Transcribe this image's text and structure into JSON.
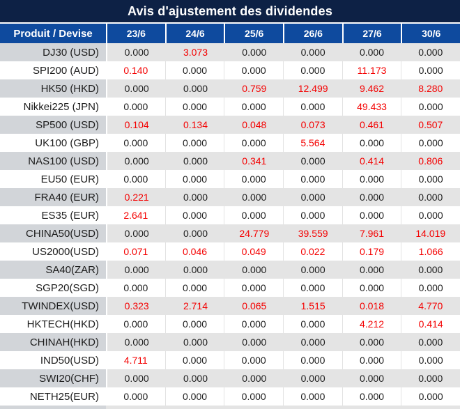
{
  "title": "Avis d'ajustement des dividendes",
  "header": {
    "product_label": "Produit / Devise",
    "dates": [
      "23/6",
      "24/6",
      "25/6",
      "26/6",
      "27/6",
      "30/6"
    ]
  },
  "rows": [
    {
      "product": "DJ30 (USD)",
      "values": [
        "0.000",
        "3.073",
        "0.000",
        "0.000",
        "0.000",
        "0.000"
      ],
      "red": [
        false,
        true,
        false,
        false,
        false,
        false
      ]
    },
    {
      "product": "SPI200 (AUD)",
      "values": [
        "0.140",
        "0.000",
        "0.000",
        "0.000",
        "11.173",
        "0.000"
      ],
      "red": [
        true,
        false,
        false,
        false,
        true,
        false
      ]
    },
    {
      "product": "HK50 (HKD)",
      "values": [
        "0.000",
        "0.000",
        "0.759",
        "12.499",
        "9.462",
        "8.280"
      ],
      "red": [
        false,
        false,
        true,
        true,
        true,
        true
      ]
    },
    {
      "product": "Nikkei225 (JPN)",
      "values": [
        "0.000",
        "0.000",
        "0.000",
        "0.000",
        "49.433",
        "0.000"
      ],
      "red": [
        false,
        false,
        false,
        false,
        true,
        false
      ]
    },
    {
      "product": "SP500 (USD)",
      "values": [
        "0.104",
        "0.134",
        "0.048",
        "0.073",
        "0.461",
        "0.507"
      ],
      "red": [
        true,
        true,
        true,
        true,
        true,
        true
      ]
    },
    {
      "product": "UK100 (GBP)",
      "values": [
        "0.000",
        "0.000",
        "0.000",
        "5.564",
        "0.000",
        "0.000"
      ],
      "red": [
        false,
        false,
        false,
        true,
        false,
        false
      ]
    },
    {
      "product": "NAS100 (USD)",
      "values": [
        "0.000",
        "0.000",
        "0.341",
        "0.000",
        "0.414",
        "0.806"
      ],
      "red": [
        false,
        false,
        true,
        false,
        true,
        true
      ]
    },
    {
      "product": "EU50 (EUR)",
      "values": [
        "0.000",
        "0.000",
        "0.000",
        "0.000",
        "0.000",
        "0.000"
      ],
      "red": [
        false,
        false,
        false,
        false,
        false,
        false
      ]
    },
    {
      "product": "FRA40 (EUR)",
      "values": [
        "0.221",
        "0.000",
        "0.000",
        "0.000",
        "0.000",
        "0.000"
      ],
      "red": [
        true,
        false,
        false,
        false,
        false,
        false
      ]
    },
    {
      "product": "ES35 (EUR)",
      "values": [
        "2.641",
        "0.000",
        "0.000",
        "0.000",
        "0.000",
        "0.000"
      ],
      "red": [
        true,
        false,
        false,
        false,
        false,
        false
      ]
    },
    {
      "product": "CHINA50(USD)",
      "values": [
        "0.000",
        "0.000",
        "24.779",
        "39.559",
        "7.961",
        "14.019"
      ],
      "red": [
        false,
        false,
        true,
        true,
        true,
        true
      ]
    },
    {
      "product": "US2000(USD)",
      "values": [
        "0.071",
        "0.046",
        "0.049",
        "0.022",
        "0.179",
        "1.066"
      ],
      "red": [
        true,
        true,
        true,
        true,
        true,
        true
      ]
    },
    {
      "product": "SA40(ZAR)",
      "values": [
        "0.000",
        "0.000",
        "0.000",
        "0.000",
        "0.000",
        "0.000"
      ],
      "red": [
        false,
        false,
        false,
        false,
        false,
        false
      ]
    },
    {
      "product": "SGP20(SGD)",
      "values": [
        "0.000",
        "0.000",
        "0.000",
        "0.000",
        "0.000",
        "0.000"
      ],
      "red": [
        false,
        false,
        false,
        false,
        false,
        false
      ]
    },
    {
      "product": "TWINDEX(USD)",
      "values": [
        "0.323",
        "2.714",
        "0.065",
        "1.515",
        "0.018",
        "4.770"
      ],
      "red": [
        true,
        true,
        true,
        true,
        true,
        true
      ]
    },
    {
      "product": "HKTECH(HKD)",
      "values": [
        "0.000",
        "0.000",
        "0.000",
        "0.000",
        "4.212",
        "0.414"
      ],
      "red": [
        false,
        false,
        false,
        false,
        true,
        true
      ]
    },
    {
      "product": "CHINAH(HKD)",
      "values": [
        "0.000",
        "0.000",
        "0.000",
        "0.000",
        "0.000",
        "0.000"
      ],
      "red": [
        false,
        false,
        false,
        false,
        false,
        false
      ]
    },
    {
      "product": "IND50(USD)",
      "values": [
        "4.711",
        "0.000",
        "0.000",
        "0.000",
        "0.000",
        "0.000"
      ],
      "red": [
        true,
        false,
        false,
        false,
        false,
        false
      ]
    },
    {
      "product": "SWI20(CHF)",
      "values": [
        "0.000",
        "0.000",
        "0.000",
        "0.000",
        "0.000",
        "0.000"
      ],
      "red": [
        false,
        false,
        false,
        false,
        false,
        false
      ]
    },
    {
      "product": "NETH25(EUR)",
      "values": [
        "0.000",
        "0.000",
        "0.000",
        "0.000",
        "0.000",
        "0.000"
      ],
      "red": [
        false,
        false,
        false,
        false,
        false,
        false
      ]
    }
  ],
  "colors": {
    "title_bg": "#0d2145",
    "header_bg": "#0e4a9e",
    "highlight_red": "#f40000",
    "row_gray_values": "#e4e4e4",
    "row_gray_product": "#d2d5d9",
    "text_dark": "#1c1c1c"
  }
}
